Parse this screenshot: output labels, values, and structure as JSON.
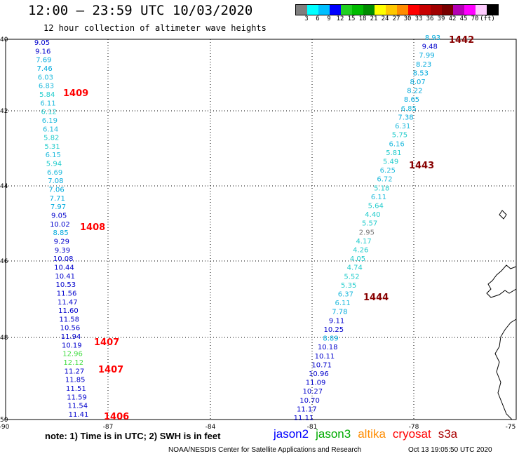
{
  "header": {
    "title": "12:00 – 23:59 UTC 10/03/2020",
    "subtitle": "12 hour collection of altimeter wave heights"
  },
  "colorbar": {
    "colors": [
      "#7f7f7f",
      "#00ffff",
      "#00bfff",
      "#0000ff",
      "#20d020",
      "#00bb00",
      "#008c00",
      "#ffff00",
      "#ffc800",
      "#ff8c00",
      "#ff0000",
      "#c80000",
      "#a00000",
      "#780000",
      "#b400b4",
      "#ff00ff",
      "#ffccff",
      "#000000"
    ],
    "labels": [
      "3",
      "6",
      "9",
      "12",
      "15",
      "18",
      "21",
      "24",
      "27",
      "30",
      "33",
      "36",
      "39",
      "42",
      "45",
      "70",
      "(ft)"
    ]
  },
  "axes": {
    "lat_labels": [
      "40",
      "42",
      "44",
      "46",
      "48",
      "50"
    ],
    "lon_labels": [
      "-90",
      "-87",
      "-84",
      "-81",
      "-78",
      "-75"
    ]
  },
  "tracks": [
    {
      "id": "west",
      "points": [
        {
          "v": "9.05",
          "c": "#0000cc"
        },
        {
          "v": "9.16",
          "c": "#0000cc"
        },
        {
          "v": "7.69",
          "c": "#00aadd"
        },
        {
          "v": "7.46",
          "c": "#00aadd"
        },
        {
          "v": "6.03",
          "c": "#22bbdd"
        },
        {
          "v": "6.83",
          "c": "#22bbdd"
        },
        {
          "v": "5.84",
          "c": "#22cccc"
        },
        {
          "v": "6.11",
          "c": "#22bbdd"
        },
        {
          "v": "6.12",
          "c": "#22cccc"
        },
        {
          "v": "6.19",
          "c": "#22bbdd"
        },
        {
          "v": "6.14",
          "c": "#22bbdd"
        },
        {
          "v": "5.82",
          "c": "#22cccc"
        },
        {
          "v": "5.31",
          "c": "#22cccc"
        },
        {
          "v": "6.15",
          "c": "#22bbdd"
        },
        {
          "v": "5.94",
          "c": "#22cccc"
        },
        {
          "v": "6.69",
          "c": "#22bbdd"
        },
        {
          "v": "7.08",
          "c": "#00aadd"
        },
        {
          "v": "7.06",
          "c": "#00aadd"
        },
        {
          "v": "7.71",
          "c": "#00aadd"
        },
        {
          "v": "7.97",
          "c": "#00aadd"
        },
        {
          "v": "9.05",
          "c": "#0000cc"
        },
        {
          "v": "10.02",
          "c": "#0000cc"
        },
        {
          "v": "8.85",
          "c": "#00aadd"
        },
        {
          "v": "9.29",
          "c": "#0000cc"
        },
        {
          "v": "9.39",
          "c": "#0000cc"
        },
        {
          "v": "10.08",
          "c": "#0000cc"
        },
        {
          "v": "10.44",
          "c": "#0000cc"
        },
        {
          "v": "10.41",
          "c": "#0000cc"
        },
        {
          "v": "10.53",
          "c": "#0000cc"
        },
        {
          "v": "11.56",
          "c": "#0000cc"
        },
        {
          "v": "11.47",
          "c": "#0000cc"
        },
        {
          "v": "11.60",
          "c": "#0000cc"
        },
        {
          "v": "11.58",
          "c": "#0000cc"
        },
        {
          "v": "10.56",
          "c": "#0000cc"
        },
        {
          "v": "11.94",
          "c": "#0000cc"
        },
        {
          "v": "10.19",
          "c": "#0000cc"
        },
        {
          "v": "12.96",
          "c": "#44dd44"
        },
        {
          "v": "12.12",
          "c": "#44dd44"
        },
        {
          "v": "11.27",
          "c": "#0000cc"
        },
        {
          "v": "11.85",
          "c": "#0000cc"
        },
        {
          "v": "11.51",
          "c": "#0000cc"
        },
        {
          "v": "11.59",
          "c": "#0000cc"
        },
        {
          "v": "11.54",
          "c": "#0000cc"
        },
        {
          "v": "11.41",
          "c": "#0000cc"
        }
      ]
    },
    {
      "id": "east",
      "points": [
        {
          "v": "8.93",
          "c": "#00aadd"
        },
        {
          "v": "9.48",
          "c": "#0000cc"
        },
        {
          "v": "7.99",
          "c": "#00aadd"
        },
        {
          "v": "8.23",
          "c": "#00aadd"
        },
        {
          "v": "8.53",
          "c": "#00aadd"
        },
        {
          "v": "8.07",
          "c": "#00aadd"
        },
        {
          "v": "8.22",
          "c": "#00aadd"
        },
        {
          "v": "8.65",
          "c": "#00aadd"
        },
        {
          "v": "6.85",
          "c": "#22bbdd"
        },
        {
          "v": "7.38",
          "c": "#00aadd"
        },
        {
          "v": "6.31",
          "c": "#22bbdd"
        },
        {
          "v": "5.75",
          "c": "#22cccc"
        },
        {
          "v": "6.16",
          "c": "#22bbdd"
        },
        {
          "v": "5.81",
          "c": "#22cccc"
        },
        {
          "v": "5.49",
          "c": "#22cccc"
        },
        {
          "v": "6.25",
          "c": "#22bbdd"
        },
        {
          "v": "6.72",
          "c": "#22bbdd"
        },
        {
          "v": "5.18",
          "c": "#22cccc"
        },
        {
          "v": "6.11",
          "c": "#22bbdd"
        },
        {
          "v": "5.64",
          "c": "#22cccc"
        },
        {
          "v": "4.40",
          "c": "#22cccc"
        },
        {
          "v": "5.57",
          "c": "#22cccc"
        },
        {
          "v": "2.95",
          "c": "#777777"
        },
        {
          "v": "4.17",
          "c": "#22cccc"
        },
        {
          "v": "4.26",
          "c": "#22cccc"
        },
        {
          "v": "4.05",
          "c": "#22cccc"
        },
        {
          "v": "4.74",
          "c": "#22cccc"
        },
        {
          "v": "5.52",
          "c": "#22cccc"
        },
        {
          "v": "5.35",
          "c": "#22cccc"
        },
        {
          "v": "6.37",
          "c": "#22bbdd"
        },
        {
          "v": "6.11",
          "c": "#22bbdd"
        },
        {
          "v": "7.78",
          "c": "#00aadd"
        },
        {
          "v": "9.11",
          "c": "#0000cc"
        },
        {
          "v": "10.25",
          "c": "#0000cc"
        },
        {
          "v": "8.89",
          "c": "#00aadd"
        },
        {
          "v": "10.18",
          "c": "#0000cc"
        },
        {
          "v": "10.11",
          "c": "#0000cc"
        },
        {
          "v": "10.71",
          "c": "#0000cc"
        },
        {
          "v": "10.96",
          "c": "#0000cc"
        },
        {
          "v": "11.09",
          "c": "#0000cc"
        },
        {
          "v": "10.27",
          "c": "#0000cc"
        },
        {
          "v": "10.70",
          "c": "#0000cc"
        },
        {
          "v": "11.17",
          "c": "#0000cc"
        },
        {
          "v": "11.11",
          "c": "#0000cc"
        }
      ]
    }
  ],
  "time_labels": [
    {
      "t": "1409",
      "c": "#ff0000"
    },
    {
      "t": "1408",
      "c": "#ff0000"
    },
    {
      "t": "1407",
      "c": "#ff0000"
    },
    {
      "t": "1407",
      "c": "#ff0000"
    },
    {
      "t": "1406",
      "c": "#ff0000"
    },
    {
      "t": "1442",
      "c": "#880000"
    },
    {
      "t": "1443",
      "c": "#880000"
    },
    {
      "t": "1444",
      "c": "#880000"
    }
  ],
  "footer": {
    "note": "note: 1) Time is in UTC; 2) SWH is in feet",
    "satellites": [
      {
        "name": "jason2",
        "color": "#0000ff"
      },
      {
        "name": "jason3",
        "color": "#00aa00"
      },
      {
        "name": "altika",
        "color": "#ff8c00"
      },
      {
        "name": "cryosat",
        "color": "#ff0000"
      },
      {
        "name": "s3a",
        "color": "#aa0000"
      }
    ],
    "credit": "NOAA/NESDIS Center for Satellite Applications and Research",
    "timestamp": "Oct 13 19:05:50 UTC 2020"
  }
}
